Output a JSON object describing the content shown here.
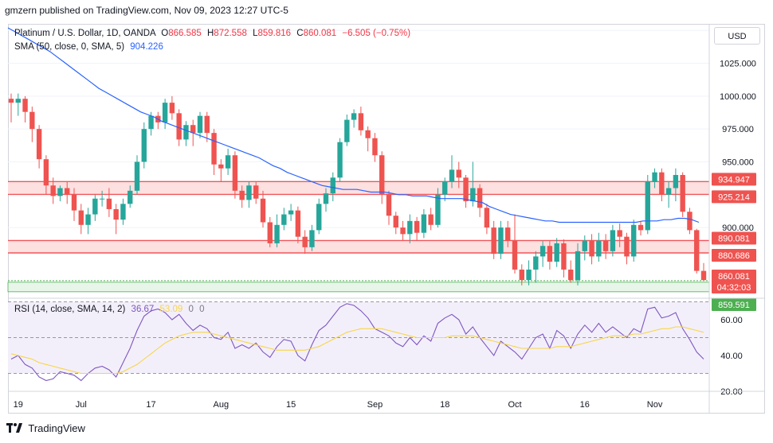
{
  "header": {
    "publisher_line": "gmzern published on TradingView.com, Nov 09, 2023 12:27 UTC-5"
  },
  "currency_button": "USD",
  "legend": {
    "symbol": "Platinum / U.S. Dollar, 1D, OANDA",
    "open_label": "O",
    "open": "866.585",
    "high_label": "H",
    "high": "872.558",
    "low_label": "L",
    "low": "859.816",
    "close_label": "C",
    "close": "860.081",
    "change": "−6.505 (−0.75%)",
    "sma_label": "SMA (50, close, 0, SMA, 5)",
    "sma_value": "904.226",
    "rsi_label": "RSI (14, close, SMA, 14, 2)",
    "rsi_value": "36.67",
    "rsi_sma_value": "53.09",
    "rsi_extra_1": "0",
    "rsi_extra_2": "0"
  },
  "footer": {
    "brand": "TradingView"
  },
  "colors": {
    "up": "#26a69a",
    "down": "#ef5350",
    "sma": "#2962ff",
    "rsi": "#7e57c2",
    "rsi_sma": "#f7d64a",
    "zone_fill": "#fde0e0",
    "zone_line": "#f0555a",
    "support": "#4caf50"
  },
  "chart_data": [
    {
      "type": "candlestick",
      "title": "Platinum / U.S. Dollar, 1D, OANDA",
      "y_axis_ticks": [
        1050,
        1025,
        1000,
        975,
        950,
        900
      ],
      "ylim": [
        848,
        1055
      ],
      "x_tick_labels": [
        {
          "label": "19",
          "index": 1
        },
        {
          "label": "Jul",
          "index": 10
        },
        {
          "label": "17",
          "index": 20
        },
        {
          "label": "Aug",
          "index": 30
        },
        {
          "label": "15",
          "index": 40
        },
        {
          "label": "Sep",
          "index": 52
        },
        {
          "label": "18",
          "index": 62
        },
        {
          "label": "Oct",
          "index": 72
        },
        {
          "label": "16",
          "index": 82
        },
        {
          "label": "Nov",
          "index": 92
        }
      ],
      "candles": [
        [
          998,
          995,
          1002,
          980
        ],
        [
          995,
          998,
          1002,
          985
        ],
        [
          998,
          988,
          1000,
          980
        ],
        [
          988,
          975,
          992,
          965
        ],
        [
          975,
          952,
          978,
          945
        ],
        [
          952,
          932,
          955,
          925
        ],
        [
          932,
          924,
          938,
          918
        ],
        [
          924,
          930,
          932,
          920
        ],
        [
          930,
          925,
          935,
          918
        ],
        [
          925,
          913,
          930,
          905
        ],
        [
          913,
          902,
          918,
          895
        ],
        [
          902,
          910,
          915,
          895
        ],
        [
          910,
          922,
          925,
          905
        ],
        [
          922,
          922,
          928,
          916
        ],
        [
          922,
          914,
          930,
          908
        ],
        [
          914,
          906,
          918,
          895
        ],
        [
          906,
          918,
          922,
          902
        ],
        [
          918,
          928,
          932,
          915
        ],
        [
          928,
          950,
          955,
          925
        ],
        [
          950,
          975,
          980,
          945
        ],
        [
          975,
          985,
          988,
          970
        ],
        [
          985,
          980,
          988,
          975
        ],
        [
          980,
          995,
          998,
          975
        ],
        [
          995,
          987,
          1000,
          982
        ],
        [
          987,
          967,
          990,
          962
        ],
        [
          967,
          978,
          981,
          962
        ],
        [
          978,
          972,
          982,
          962
        ],
        [
          972,
          985,
          988,
          968
        ],
        [
          985,
          972,
          988,
          965
        ],
        [
          972,
          948,
          975,
          940
        ],
        [
          948,
          945,
          952,
          935
        ],
        [
          945,
          955,
          960,
          940
        ],
        [
          955,
          928,
          958,
          922
        ],
        [
          928,
          921,
          932,
          915
        ],
        [
          921,
          932,
          935,
          915
        ],
        [
          932,
          922,
          935,
          918
        ],
        [
          922,
          904,
          928,
          900
        ],
        [
          904,
          888,
          908,
          885
        ],
        [
          888,
          902,
          910,
          885
        ],
        [
          902,
          910,
          915,
          898
        ],
        [
          910,
          913,
          918,
          905
        ],
        [
          913,
          893,
          916,
          888
        ],
        [
          893,
          885,
          898,
          880
        ],
        [
          885,
          898,
          902,
          882
        ],
        [
          898,
          918,
          922,
          895
        ],
        [
          918,
          926,
          930,
          912
        ],
        [
          926,
          938,
          942,
          920
        ],
        [
          938,
          965,
          968,
          935
        ],
        [
          965,
          982,
          986,
          962
        ],
        [
          982,
          987,
          990,
          976
        ],
        [
          987,
          974,
          992,
          970
        ],
        [
          974,
          968,
          977,
          958
        ],
        [
          968,
          955,
          972,
          950
        ],
        [
          955,
          925,
          958,
          918
        ],
        [
          925,
          909,
          928,
          902
        ],
        [
          909,
          900,
          912,
          895
        ],
        [
          900,
          895,
          905,
          890
        ],
        [
          895,
          905,
          910,
          888
        ],
        [
          905,
          896,
          908,
          890
        ],
        [
          896,
          910,
          914,
          892
        ],
        [
          910,
          902,
          915,
          898
        ],
        [
          902,
          925,
          930,
          900
        ],
        [
          925,
          935,
          938,
          920
        ],
        [
          935,
          944,
          955,
          930
        ],
        [
          944,
          938,
          950,
          930
        ],
        [
          938,
          920,
          940,
          915
        ],
        [
          920,
          930,
          950,
          916
        ],
        [
          930,
          915,
          933,
          908
        ],
        [
          915,
          900,
          918,
          895
        ],
        [
          900,
          880,
          905,
          876
        ],
        [
          880,
          900,
          905,
          876
        ],
        [
          900,
          890,
          905,
          885
        ],
        [
          890,
          868,
          910,
          865
        ],
        [
          868,
          860,
          872,
          856
        ],
        [
          860,
          868,
          875,
          856
        ],
        [
          868,
          878,
          882,
          858
        ],
        [
          878,
          886,
          890,
          870
        ],
        [
          886,
          874,
          890,
          868
        ],
        [
          874,
          888,
          892,
          870
        ],
        [
          888,
          868,
          891,
          862
        ],
        [
          868,
          860,
          875,
          858
        ],
        [
          860,
          882,
          888,
          856
        ],
        [
          882,
          890,
          894,
          875
        ],
        [
          890,
          878,
          895,
          872
        ],
        [
          878,
          890,
          896,
          874
        ],
        [
          890,
          882,
          895,
          876
        ],
        [
          882,
          898,
          902,
          878
        ],
        [
          898,
          893,
          903,
          885
        ],
        [
          893,
          878,
          896,
          872
        ],
        [
          878,
          902,
          906,
          874
        ],
        [
          902,
          898,
          905,
          894
        ],
        [
          898,
          935,
          940,
          895
        ],
        [
          935,
          942,
          945,
          930
        ],
        [
          942,
          925,
          945,
          920
        ],
        [
          925,
          930,
          935,
          915
        ],
        [
          930,
          940,
          945,
          920
        ],
        [
          940,
          912,
          942,
          908
        ],
        [
          912,
          898,
          915,
          895
        ],
        [
          898,
          867,
          899,
          865
        ],
        [
          867,
          860,
          873,
          860
        ]
      ],
      "sma_series": [
        1052,
        1049,
        1046,
        1043,
        1040,
        1037,
        1034,
        1030,
        1026,
        1022,
        1018,
        1014,
        1010,
        1006,
        1003,
        1000,
        997,
        994,
        991,
        988,
        986,
        984,
        981,
        979,
        977,
        975,
        973,
        971,
        969,
        967,
        965,
        963,
        961,
        959,
        957,
        955,
        953,
        950,
        947,
        945,
        942,
        940,
        938,
        936,
        934,
        932,
        931,
        930,
        929,
        929,
        929,
        928,
        927,
        927,
        927,
        926,
        925,
        925,
        924,
        924,
        924,
        923,
        922,
        922,
        922,
        922,
        921,
        920,
        919,
        916,
        914,
        912,
        910,
        909,
        908,
        907,
        906,
        905,
        905,
        904,
        904,
        904,
        904,
        904,
        904,
        904,
        904,
        904,
        904,
        904,
        904,
        905,
        905,
        905,
        906,
        906,
        907,
        907,
        906,
        904
      ],
      "horizontal_levels": [
        {
          "label": "934.947",
          "value": 934.947
        },
        {
          "label": "925.214",
          "value": 925.214
        },
        {
          "label": "890.081",
          "value": 890.081
        },
        {
          "label": "880.686",
          "value": 880.686
        },
        {
          "label": "860.081",
          "value": 860.081
        },
        {
          "label": "04:32:03",
          "value": 853.8
        },
        {
          "label": "859.591",
          "value": 859.591
        }
      ]
    },
    {
      "type": "line",
      "title": "RSI (14, close, SMA, 14, 2)",
      "y_axis_ticks": [
        60,
        40,
        20
      ],
      "ylim": [
        20,
        72
      ],
      "band": [
        30,
        70
      ],
      "series": [
        {
          "name": "RSI",
          "values": [
            38,
            40,
            35,
            33,
            28,
            26,
            27,
            31,
            30,
            29,
            26,
            30,
            33,
            34,
            32,
            28,
            36,
            44,
            54,
            62,
            65,
            66,
            64,
            60,
            63,
            58,
            54,
            57,
            55,
            50,
            49,
            53,
            44,
            46,
            44,
            47,
            42,
            39,
            45,
            49,
            48,
            40,
            37,
            46,
            54,
            57,
            62,
            67,
            69,
            68,
            65,
            61,
            55,
            53,
            51,
            47,
            45,
            50,
            46,
            51,
            48,
            58,
            61,
            63,
            60,
            52,
            56,
            50,
            45,
            40,
            48,
            45,
            42,
            38,
            44,
            50,
            52,
            44,
            54,
            51,
            44,
            52,
            57,
            53,
            58,
            53,
            56,
            53,
            50,
            55,
            53,
            66,
            67,
            61,
            62,
            64,
            55,
            49,
            42,
            38
          ]
        },
        {
          "name": "SMA",
          "values": [
            41,
            40,
            39,
            38,
            36,
            35,
            34,
            33,
            32,
            31,
            30,
            30,
            30,
            30,
            30,
            30,
            31,
            33,
            35,
            38,
            41,
            44,
            47,
            49,
            51,
            52,
            53,
            53,
            53,
            52,
            51,
            50,
            49,
            48,
            47,
            46,
            45,
            44,
            43,
            43,
            43,
            43,
            43,
            44,
            45,
            47,
            49,
            51,
            53,
            54,
            55,
            55,
            55,
            55,
            54,
            53,
            52,
            51,
            50,
            50,
            50,
            50,
            50,
            51,
            51,
            51,
            51,
            50,
            49,
            48,
            47,
            46,
            45,
            44,
            44,
            44,
            44,
            44,
            45,
            45,
            45,
            46,
            47,
            48,
            49,
            50,
            51,
            51,
            51,
            52,
            52,
            53,
            54,
            55,
            55,
            56,
            56,
            55,
            54,
            53
          ]
        }
      ]
    }
  ]
}
